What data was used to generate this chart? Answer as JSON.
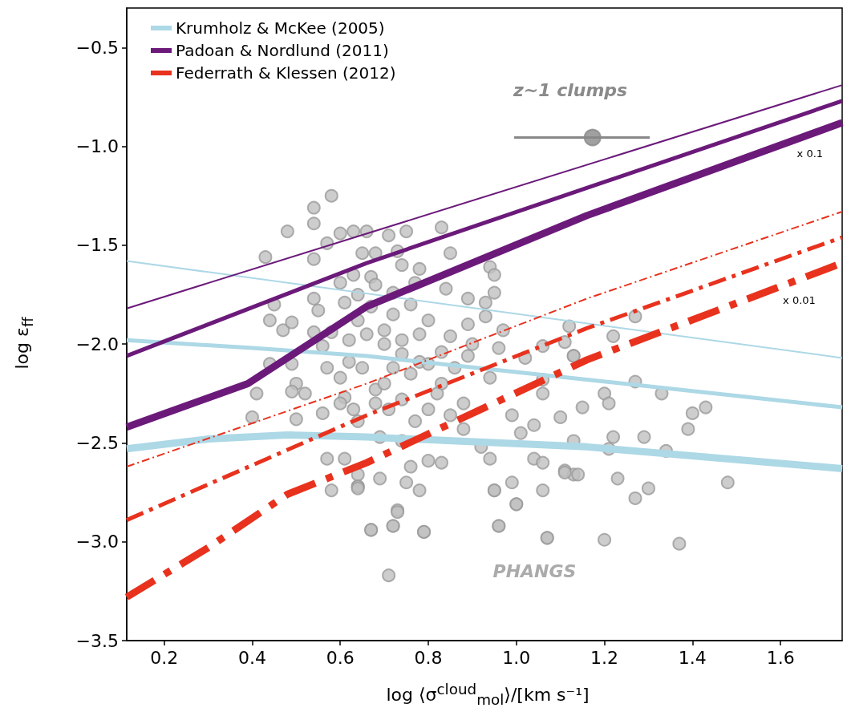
{
  "chart_data": {
    "type": "line",
    "xlabel": "log ⟨σ$^{cloud}$$_{mol}$⟩/[km s⁻¹]",
    "ylabel": "log ε$_{ff}$",
    "xlim": [
      0.115,
      1.74
    ],
    "ylim": [
      -3.5,
      -0.3
    ],
    "xticks": [
      0.2,
      0.4,
      0.6,
      0.8,
      {
        "value": 1,
        "label": "1.0"
      },
      1.2,
      1.4,
      1.6
    ],
    "yticks": [
      {
        "value": -3.5,
        "label": "−3.5"
      },
      {
        "value": -3,
        "label": "−3.0"
      },
      {
        "value": -2.5,
        "label": "−2.5"
      },
      {
        "value": -2,
        "label": "−2.0"
      },
      {
        "value": -1.5,
        "label": "−1.5"
      },
      {
        "value": -1,
        "label": "−1.0"
      },
      {
        "value": -0.5,
        "label": "−0.5"
      }
    ],
    "grid": false,
    "legend": "top left",
    "series": [
      {
        "color": "#add8e6",
        "line_style": "solid",
        "marker": "none",
        "x": [
          0.115,
          1.74
        ],
        "values": [
          -1.58,
          -2.07
        ]
      },
      {
        "name": "Krumholz & McKee (2005)",
        "color": "#add8e6",
        "line_style": "solid",
        "marker": "none",
        "x": [
          0.115,
          0.4,
          0.66,
          1.16,
          1.74
        ],
        "values": [
          -1.98,
          -2.02,
          -2.06,
          -2.18,
          -2.32
        ]
      },
      {
        "color": "#add8e6",
        "line_style": "solid",
        "marker": "none",
        "x": [
          0.115,
          0.3,
          0.48,
          0.66,
          1.16,
          1.74
        ],
        "values": [
          -2.53,
          -2.48,
          -2.46,
          -2.47,
          -2.52,
          -2.63
        ]
      },
      {
        "color": "#6b1a7a",
        "line_style": "solid",
        "marker": "none",
        "x": [
          0.115,
          1.74
        ],
        "values": [
          -1.82,
          -0.69
        ]
      },
      {
        "name": "Padoan & Nordlund (2011)",
        "color": "#6b1a7a",
        "line_style": "solid",
        "marker": "none",
        "x": [
          0.115,
          0.66,
          1.16,
          1.74
        ],
        "values": [
          -2.06,
          -1.59,
          -1.21,
          -0.77
        ]
      },
      {
        "color": "#6b1a7a",
        "line_style": "solid",
        "marker": "none",
        "x": [
          0.115,
          0.39,
          0.66,
          1.16,
          1.74
        ],
        "values": [
          -2.42,
          -2.2,
          -1.81,
          -1.35,
          -0.88
        ]
      },
      {
        "color": "#e8321e",
        "line_style": "dashdot",
        "marker": "none",
        "x": [
          0.115,
          0.66,
          1.16,
          1.74
        ],
        "values": [
          -2.62,
          -2.2,
          -1.77,
          -1.33
        ]
      },
      {
        "name": "Federrath & Klessen (2012)",
        "color": "#e8321e",
        "line_style": "dashdot",
        "marker": "none",
        "x": [
          0.115,
          0.66,
          1.16,
          1.74
        ],
        "values": [
          -2.89,
          -2.36,
          -1.92,
          -1.46
        ]
      },
      {
        "color": "#e8321e",
        "line_style": "dashdot",
        "marker": "none",
        "x": [
          0.115,
          0.3,
          0.48,
          0.66,
          1.16,
          1.74
        ],
        "values": [
          -3.28,
          -3.03,
          -2.76,
          -2.6,
          -2.08,
          -1.59
        ]
      },
      {
        "type": "scatter",
        "color": "#c0c0c0",
        "marker": "circle",
        "x": [
          0.58,
          0.54,
          0.54,
          0.48,
          0.43,
          0.6,
          0.63,
          0.54,
          0.57,
          0.45,
          0.44,
          0.47,
          0.49,
          0.54,
          0.55,
          0.44,
          0.49,
          0.41,
          0.4,
          0.5,
          0.5,
          0.49,
          0.52,
          0.56,
          0.57,
          0.61,
          0.58,
          0.64,
          0.64,
          0.58,
          0.56,
          0.57,
          0.6,
          0.62,
          0.62,
          0.6,
          0.63,
          0.65,
          0.61,
          0.61,
          0.63,
          0.54,
          0.83,
          0.75,
          0.71,
          0.66,
          0.85,
          0.94,
          0.95,
          0.95,
          0.84,
          0.89,
          0.93,
          0.89,
          0.93,
          0.97,
          1.12,
          1.11,
          1.13,
          1.06,
          1.02,
          0.96,
          0.89,
          0.94,
          1.06,
          1.15,
          1.06,
          1.1,
          0.99,
          1.04,
          1.01,
          0.92,
          0.94,
          1.04,
          1.06,
          1.11,
          1.13,
          1.13,
          0.99,
          0.95,
          1.06,
          1.0,
          0.96,
          1.07,
          0.83,
          0.8,
          0.78,
          0.75,
          0.73,
          0.72,
          0.67,
          0.79,
          0.71,
          0.69,
          0.64,
          0.76,
          0.88,
          0.85,
          0.8,
          0.74,
          0.68,
          0.72,
          0.78,
          0.83,
          0.85,
          0.8,
          0.74,
          0.7,
          0.67,
          0.72,
          0.77,
          0.67,
          0.78,
          0.73,
          0.68,
          0.64,
          0.65,
          0.64,
          0.69,
          0.74,
          0.83,
          0.77,
          0.71,
          1.27,
          1.22,
          1.13,
          1.27,
          1.33,
          1.2,
          1.21,
          1.4,
          1.43,
          1.39,
          1.22,
          1.29,
          1.34,
          1.21,
          1.11,
          1.14,
          1.23,
          1.3,
          1.27,
          1.48,
          1.2,
          1.37,
          0.67,
          0.72,
          0.73,
          0.79,
          0.64,
          0.95,
          0.96,
          1.0,
          1.07,
          0.66,
          0.7,
          0.74,
          0.78,
          0.7,
          0.76,
          0.8,
          0.68,
          0.72,
          0.76,
          0.82,
          0.86,
          0.9,
          0.64,
          0.68,
          0.74,
          0.6,
          0.88
        ],
        "values": [
          -1.25,
          -1.31,
          -1.39,
          -1.43,
          -1.56,
          -1.44,
          -1.43,
          -1.57,
          -1.49,
          -1.8,
          -1.88,
          -1.93,
          -1.89,
          -1.77,
          -1.83,
          -2.1,
          -2.1,
          -2.25,
          -2.37,
          -2.38,
          -2.2,
          -2.24,
          -2.25,
          -2.35,
          -2.58,
          -2.58,
          -2.74,
          -2.72,
          -2.66,
          -1.94,
          -2.01,
          -2.12,
          -2.17,
          -1.98,
          -2.09,
          -1.69,
          -1.65,
          -1.54,
          -1.79,
          -2.27,
          -2.33,
          -1.94,
          -1.41,
          -1.43,
          -1.45,
          -1.43,
          -1.54,
          -1.61,
          -1.65,
          -1.74,
          -1.72,
          -1.77,
          -1.79,
          -1.9,
          -1.86,
          -1.93,
          -1.91,
          -1.99,
          -2.06,
          -2.01,
          -2.07,
          -2.02,
          -2.06,
          -2.17,
          -2.18,
          -2.32,
          -2.25,
          -2.37,
          -2.36,
          -2.41,
          -2.45,
          -2.52,
          -2.58,
          -2.58,
          -2.6,
          -2.64,
          -2.66,
          -2.49,
          -2.7,
          -2.74,
          -2.74,
          -2.81,
          -2.92,
          -2.98,
          -2.6,
          -2.59,
          -2.74,
          -2.7,
          -2.84,
          -2.92,
          -2.94,
          -2.95,
          -3.17,
          -2.68,
          -2.72,
          -2.62,
          -2.43,
          -2.36,
          -2.33,
          -2.28,
          -2.23,
          -2.12,
          -2.09,
          -2.04,
          -1.96,
          -1.88,
          -1.98,
          -1.93,
          -1.81,
          -1.74,
          -1.69,
          -1.66,
          -1.62,
          -1.53,
          -1.54,
          -1.75,
          -2.12,
          -2.39,
          -2.47,
          -2.49,
          -2.2,
          -2.39,
          -2.33,
          -1.86,
          -1.96,
          -2.06,
          -2.19,
          -2.25,
          -2.25,
          -2.3,
          -2.35,
          -2.32,
          -2.43,
          -2.47,
          -2.47,
          -2.54,
          -2.53,
          -2.65,
          -2.66,
          -2.68,
          -2.73,
          -2.78,
          -2.7,
          -2.99,
          -3.01,
          -2.94,
          -2.92,
          -2.85,
          -2.95,
          -2.73,
          -2.74,
          -2.92,
          -2.81,
          -2.98,
          -1.95,
          -2.0,
          -2.05,
          -1.95,
          -2.2,
          -2.15,
          -2.1,
          -2.3,
          -1.85,
          -1.8,
          -2.25,
          -2.12,
          -2.0,
          -1.88,
          -1.7,
          -1.6,
          -2.3,
          -2.3
        ]
      },
      {
        "type": "scatter",
        "color": "#888888",
        "marker": "circle",
        "x": [
          1.173
        ],
        "values": [
          -0.955
        ],
        "xerrors": [
          [
            0.995,
            1.303
          ]
        ]
      }
    ],
    "annotations": [
      "z~1 clumps",
      "PHANGS",
      "x 0.1",
      "x 0.01"
    ]
  }
}
